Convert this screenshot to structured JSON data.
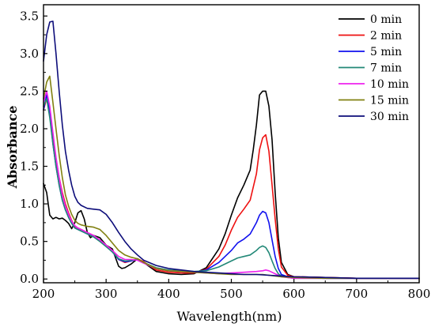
{
  "chart_data": {
    "type": "line",
    "title": "",
    "xlabel": "Wavelength(nm)",
    "ylabel": "Absorbance",
    "xlim": [
      200,
      800
    ],
    "ylim": [
      -0.05,
      3.65
    ],
    "xticks": [
      200,
      300,
      400,
      500,
      600,
      700,
      800
    ],
    "xtick_labels": [
      "200",
      "300",
      "400",
      "500",
      "600",
      "700",
      "800"
    ],
    "yticks": [
      0.0,
      0.5,
      1.0,
      1.5,
      2.0,
      2.5,
      3.0,
      3.5
    ],
    "ytick_labels": [
      "0.0",
      "0.5",
      "1.0",
      "1.5",
      "2.0",
      "2.5",
      "3.0",
      "3.5"
    ],
    "grid": false,
    "legend_position": "top-right",
    "series": [
      {
        "name": "0 min",
        "color": "#000000",
        "x": [
          200,
          205,
          210,
          215,
          220,
          225,
          230,
          235,
          240,
          245,
          250,
          255,
          260,
          265,
          270,
          275,
          280,
          290,
          300,
          310,
          320,
          325,
          330,
          340,
          350,
          360,
          380,
          400,
          420,
          440,
          460,
          480,
          490,
          500,
          510,
          520,
          530,
          535,
          540,
          545,
          550,
          555,
          560,
          565,
          570,
          575,
          580,
          590,
          600,
          650,
          700,
          750,
          800
        ],
        "y": [
          1.27,
          1.15,
          0.85,
          0.8,
          0.82,
          0.8,
          0.81,
          0.78,
          0.74,
          0.67,
          0.75,
          0.88,
          0.91,
          0.8,
          0.62,
          0.55,
          0.58,
          0.55,
          0.45,
          0.4,
          0.17,
          0.14,
          0.15,
          0.2,
          0.27,
          0.22,
          0.1,
          0.07,
          0.06,
          0.07,
          0.15,
          0.4,
          0.6,
          0.85,
          1.08,
          1.25,
          1.45,
          1.72,
          2.05,
          2.45,
          2.5,
          2.5,
          2.3,
          1.85,
          1.15,
          0.55,
          0.22,
          0.06,
          0.03,
          0.02,
          0.01,
          0.01,
          0.01
        ]
      },
      {
        "name": "2 min",
        "color": "#ee1111",
        "x": [
          200,
          205,
          210,
          215,
          220,
          225,
          230,
          235,
          240,
          245,
          250,
          255,
          260,
          270,
          280,
          290,
          300,
          310,
          320,
          330,
          340,
          350,
          360,
          380,
          400,
          420,
          440,
          460,
          480,
          490,
          500,
          510,
          520,
          530,
          540,
          545,
          550,
          555,
          560,
          565,
          570,
          575,
          580,
          590,
          600,
          650,
          700,
          750,
          800
        ],
        "y": [
          2.25,
          2.4,
          2.25,
          1.9,
          1.6,
          1.35,
          1.15,
          1.0,
          0.88,
          0.78,
          0.7,
          0.68,
          0.66,
          0.62,
          0.58,
          0.52,
          0.45,
          0.38,
          0.26,
          0.22,
          0.24,
          0.27,
          0.23,
          0.12,
          0.09,
          0.08,
          0.08,
          0.13,
          0.3,
          0.45,
          0.65,
          0.82,
          0.93,
          1.05,
          1.4,
          1.72,
          1.88,
          1.92,
          1.7,
          1.25,
          0.8,
          0.4,
          0.16,
          0.05,
          0.03,
          0.02,
          0.01,
          0.01,
          0.01
        ]
      },
      {
        "name": "5 min",
        "color": "#1111ee",
        "x": [
          200,
          205,
          210,
          215,
          220,
          225,
          230,
          235,
          240,
          245,
          250,
          255,
          260,
          270,
          280,
          290,
          300,
          310,
          320,
          330,
          340,
          350,
          360,
          380,
          400,
          420,
          440,
          460,
          480,
          500,
          510,
          520,
          530,
          540,
          545,
          550,
          555,
          560,
          565,
          570,
          575,
          580,
          590,
          600,
          650,
          700,
          750,
          800
        ],
        "y": [
          2.25,
          2.45,
          2.2,
          1.8,
          1.5,
          1.25,
          1.05,
          0.92,
          0.82,
          0.74,
          0.68,
          0.66,
          0.64,
          0.6,
          0.57,
          0.51,
          0.44,
          0.36,
          0.26,
          0.23,
          0.24,
          0.26,
          0.22,
          0.14,
          0.11,
          0.1,
          0.09,
          0.12,
          0.22,
          0.38,
          0.48,
          0.53,
          0.6,
          0.75,
          0.85,
          0.9,
          0.88,
          0.75,
          0.52,
          0.3,
          0.14,
          0.06,
          0.03,
          0.02,
          0.01,
          0.01,
          0.01,
          0.01
        ]
      },
      {
        "name": "7 min",
        "color": "#228877",
        "x": [
          200,
          205,
          210,
          215,
          220,
          225,
          230,
          235,
          240,
          245,
          250,
          255,
          260,
          270,
          280,
          290,
          300,
          310,
          320,
          330,
          340,
          350,
          360,
          380,
          400,
          420,
          440,
          460,
          480,
          500,
          510,
          520,
          530,
          540,
          545,
          550,
          555,
          560,
          565,
          570,
          575,
          580,
          590,
          600,
          650,
          700,
          750,
          800
        ],
        "y": [
          2.3,
          2.4,
          2.15,
          1.8,
          1.5,
          1.25,
          1.05,
          0.92,
          0.82,
          0.74,
          0.68,
          0.66,
          0.64,
          0.6,
          0.56,
          0.5,
          0.43,
          0.36,
          0.27,
          0.24,
          0.25,
          0.26,
          0.22,
          0.15,
          0.12,
          0.11,
          0.1,
          0.11,
          0.16,
          0.24,
          0.28,
          0.3,
          0.32,
          0.38,
          0.42,
          0.44,
          0.42,
          0.35,
          0.24,
          0.14,
          0.07,
          0.04,
          0.02,
          0.01,
          0.01,
          0.01,
          0.01,
          0.01
        ]
      },
      {
        "name": "10 min",
        "color": "#ee22ee",
        "x": [
          200,
          205,
          210,
          215,
          220,
          225,
          230,
          235,
          240,
          245,
          250,
          255,
          260,
          270,
          280,
          290,
          300,
          310,
          320,
          330,
          340,
          350,
          360,
          380,
          400,
          420,
          440,
          460,
          480,
          500,
          520,
          540,
          550,
          555,
          560,
          570,
          580,
          600,
          650,
          700,
          750,
          800
        ],
        "y": [
          2.35,
          2.5,
          2.3,
          1.95,
          1.62,
          1.35,
          1.12,
          0.97,
          0.86,
          0.77,
          0.71,
          0.68,
          0.66,
          0.62,
          0.58,
          0.52,
          0.45,
          0.38,
          0.3,
          0.26,
          0.26,
          0.25,
          0.21,
          0.14,
          0.11,
          0.1,
          0.09,
          0.08,
          0.07,
          0.08,
          0.09,
          0.1,
          0.11,
          0.12,
          0.11,
          0.07,
          0.03,
          0.01,
          0.01,
          0.01,
          0.01,
          0.01
        ]
      },
      {
        "name": "15 min",
        "color": "#808010",
        "x": [
          200,
          205,
          210,
          215,
          220,
          225,
          230,
          235,
          240,
          245,
          250,
          255,
          260,
          270,
          280,
          290,
          300,
          310,
          320,
          330,
          340,
          350,
          360,
          380,
          400,
          420,
          440,
          460,
          480,
          500,
          520,
          540,
          550,
          560,
          570,
          580,
          600,
          650,
          700,
          750,
          800
        ],
        "y": [
          2.4,
          2.62,
          2.7,
          2.35,
          2.0,
          1.65,
          1.35,
          1.12,
          0.97,
          0.86,
          0.78,
          0.74,
          0.72,
          0.7,
          0.69,
          0.66,
          0.58,
          0.48,
          0.38,
          0.32,
          0.29,
          0.27,
          0.22,
          0.14,
          0.11,
          0.1,
          0.09,
          0.08,
          0.07,
          0.06,
          0.06,
          0.06,
          0.06,
          0.05,
          0.04,
          0.03,
          0.02,
          0.01,
          0.01,
          0.01,
          0.01
        ]
      },
      {
        "name": "30 min",
        "color": "#0d0d7a",
        "x": [
          200,
          205,
          210,
          215,
          220,
          225,
          230,
          235,
          240,
          245,
          250,
          255,
          260,
          270,
          280,
          290,
          300,
          310,
          320,
          330,
          340,
          350,
          360,
          380,
          400,
          420,
          440,
          460,
          480,
          500,
          520,
          540,
          560,
          580,
          600,
          650,
          700,
          750,
          800
        ],
        "y": [
          2.9,
          3.25,
          3.42,
          3.43,
          3.0,
          2.5,
          2.05,
          1.7,
          1.45,
          1.25,
          1.1,
          1.02,
          0.98,
          0.94,
          0.93,
          0.92,
          0.86,
          0.75,
          0.62,
          0.5,
          0.4,
          0.32,
          0.25,
          0.18,
          0.14,
          0.12,
          0.1,
          0.09,
          0.08,
          0.07,
          0.06,
          0.06,
          0.05,
          0.04,
          0.03,
          0.02,
          0.01,
          0.01,
          0.01
        ]
      }
    ]
  }
}
